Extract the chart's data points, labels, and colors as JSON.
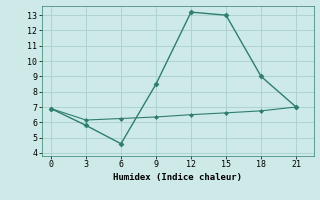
{
  "line1_x": [
    0,
    3,
    6,
    9,
    12,
    15,
    18,
    21
  ],
  "line1_y": [
    6.9,
    5.8,
    4.6,
    8.5,
    13.2,
    13.0,
    9.0,
    7.0
  ],
  "line2_x": [
    0,
    3,
    6,
    9,
    12,
    15,
    18,
    21
  ],
  "line2_y": [
    6.9,
    6.15,
    6.25,
    6.35,
    6.5,
    6.62,
    6.75,
    7.0
  ],
  "color": "#2e7d6e",
  "xlabel": "Humidex (Indice chaleur)",
  "xlim": [
    -0.8,
    22.5
  ],
  "ylim": [
    3.8,
    13.6
  ],
  "xticks": [
    0,
    3,
    6,
    9,
    12,
    15,
    18,
    21
  ],
  "yticks": [
    4,
    5,
    6,
    7,
    8,
    9,
    10,
    11,
    12,
    13
  ],
  "bg_color": "#ceeae8",
  "grid_color": "#aacfcc"
}
